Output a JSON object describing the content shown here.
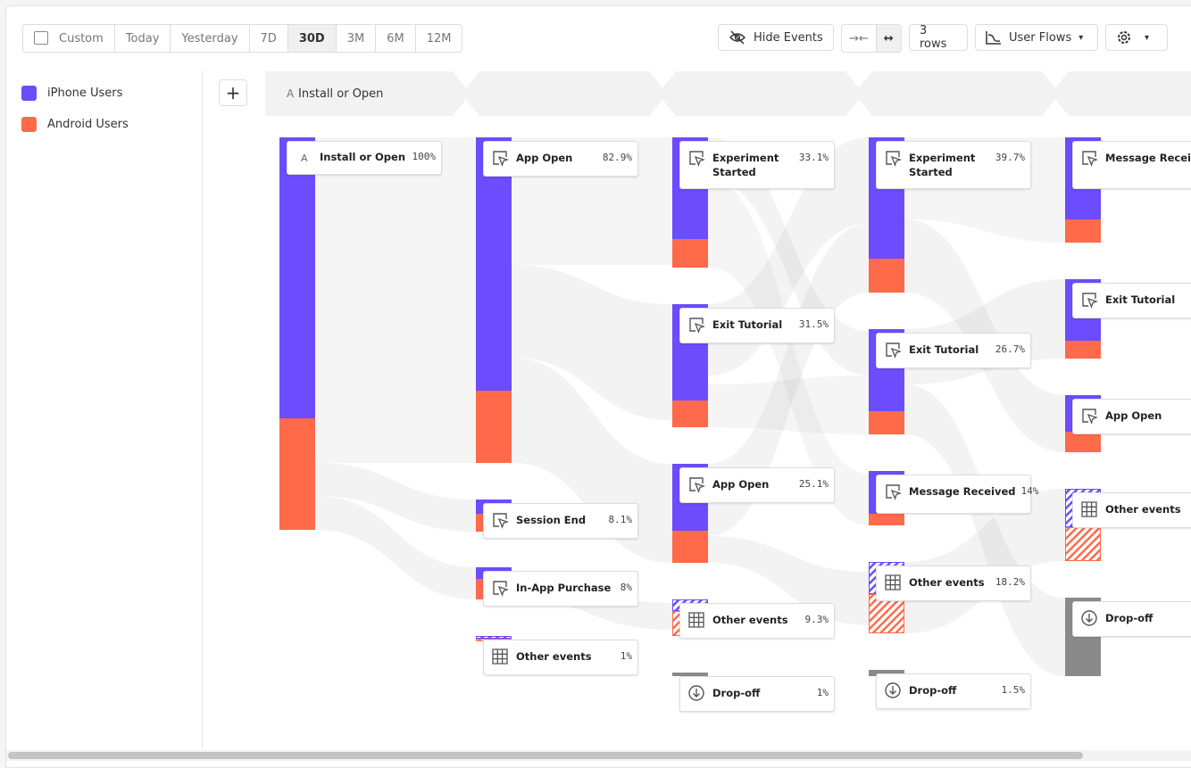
{
  "toolbar": {
    "date_ranges": [
      "Custom",
      "Today",
      "Yesterday",
      "7D",
      "30D",
      "3M",
      "6M",
      "12M"
    ],
    "hide_events": "Hide Events",
    "rows": "3 rows",
    "view": "User Flows"
  },
  "legend": [
    {
      "name": "iPhone Users",
      "color": "#6c4cfc"
    },
    {
      "name": "Android Users",
      "color": "#ff6a4b"
    }
  ],
  "step_header": {
    "letter": "A",
    "label": "Install or Open"
  },
  "columns": [
    {
      "nodes": [
        {
          "label": "Install or Open",
          "pct": "100%",
          "icon": "letter",
          "letter": "A"
        }
      ]
    },
    {
      "nodes": [
        {
          "label": "App Open",
          "pct": "82.9%",
          "icon": "event"
        },
        {
          "label": "Session End",
          "pct": "8.1%",
          "icon": "event"
        },
        {
          "label": "In-App Purchase",
          "pct": "8%",
          "icon": "event"
        },
        {
          "label": "Other events",
          "pct": "1%",
          "icon": "other"
        }
      ]
    },
    {
      "nodes": [
        {
          "label": "Experiment Started",
          "pct": "33.1%",
          "icon": "event"
        },
        {
          "label": "Exit Tutorial",
          "pct": "31.5%",
          "icon": "event"
        },
        {
          "label": "App Open",
          "pct": "25.1%",
          "icon": "event"
        },
        {
          "label": "Other events",
          "pct": "9.3%",
          "icon": "other"
        },
        {
          "label": "Drop-off",
          "pct": "1%",
          "icon": "dropoff"
        }
      ]
    },
    {
      "nodes": [
        {
          "label": "Experiment Started",
          "pct": "39.7%",
          "icon": "event"
        },
        {
          "label": "Exit Tutorial",
          "pct": "26.7%",
          "icon": "event"
        },
        {
          "label": "Message Received",
          "pct": "14%",
          "icon": "event"
        },
        {
          "label": "Other events",
          "pct": "18.2%",
          "icon": "other"
        },
        {
          "label": "Drop-off",
          "pct": "1.5%",
          "icon": "dropoff"
        }
      ]
    },
    {
      "nodes": [
        {
          "label": "Message Received",
          "icon": "event"
        },
        {
          "label": "Exit Tutorial",
          "icon": "event"
        },
        {
          "label": "App Open",
          "icon": "event"
        },
        {
          "label": "Other events",
          "icon": "other"
        },
        {
          "label": "Drop-off",
          "icon": "dropoff"
        }
      ]
    }
  ]
}
